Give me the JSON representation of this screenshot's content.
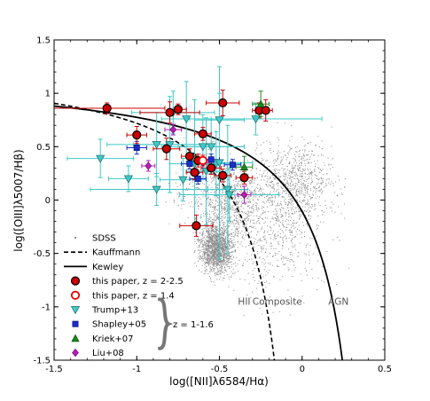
{
  "chart_data": {
    "type": "scatter",
    "title": "",
    "xlabel": "log([NII]λ6584/Hα)",
    "ylabel": "log([OIII]λ5007/Hβ)",
    "xlim": [
      -1.5,
      0.5
    ],
    "ylim": [
      -1.5,
      1.5
    ],
    "xticks": [
      "-1.5",
      "-1",
      "-0.5",
      "0",
      "0.5"
    ],
    "yticks": [
      "-1.5",
      "-1",
      "-0.5",
      "0",
      "0.5",
      "1",
      "1.5"
    ],
    "xtick_values": [
      -1.5,
      -1,
      -0.5,
      0,
      0.5
    ],
    "ytick_values": [
      -1.5,
      -1,
      -0.5,
      0,
      0.5,
      1,
      1.5
    ],
    "grid": false,
    "legend_position": "bottom-left",
    "legend": [
      {
        "label": "SDSS",
        "marker": "dot",
        "color": "#888888"
      },
      {
        "label": "Kauffmann",
        "marker": "dashed-line",
        "color": "#000000"
      },
      {
        "label": "Kewley",
        "marker": "solid-line",
        "color": "#000000"
      },
      {
        "label": "this paper, z = 2-2.5",
        "marker": "circle-filled",
        "color": "#cc0000"
      },
      {
        "label": "this paper, z = 1.4",
        "marker": "circle-open",
        "color": "#ee0000"
      },
      {
        "label": "Trump+13",
        "marker": "triangle-down",
        "color": "#40c8c8"
      },
      {
        "label": "Shapley+05",
        "marker": "square",
        "color": "#1a2cc8"
      },
      {
        "label": "Kriek+07",
        "marker": "triangle-up",
        "color": "#1a8a1a"
      },
      {
        "label": "Liu+08",
        "marker": "diamond",
        "color": "#b81bb8"
      }
    ],
    "brace_label": "z = 1-1.6",
    "region_labels": [
      "HII",
      "Composite",
      "AGN"
    ],
    "curves": {
      "kauffmann": {
        "formula": "y = 0.61/(x-0.05)+1.3",
        "x_max": 0.05,
        "style": "dashed"
      },
      "kewley": {
        "formula": "y = 0.61/(x-0.47)+1.19",
        "x_max": 0.47,
        "style": "solid"
      }
    },
    "series": [
      {
        "name": "this paper, z = 2-2.5",
        "color": "#cc0000",
        "points": [
          {
            "x": -1.18,
            "y": 0.86,
            "xerr": 0.35,
            "yerr": 0.05
          },
          {
            "x": -1.0,
            "y": 0.61,
            "xerr": 0.06,
            "yerr": 0.08
          },
          {
            "x": -0.8,
            "y": 0.82,
            "xerr": 0.18,
            "yerr": 0.1
          },
          {
            "x": -0.75,
            "y": 0.85,
            "xerr": 0.05,
            "yerr": 0.05
          },
          {
            "x": -0.82,
            "y": 0.48,
            "xerr": 0.08,
            "yerr": 0.1
          },
          {
            "x": -0.6,
            "y": 0.62,
            "xerr": 0.05,
            "yerr": 0.06
          },
          {
            "x": -0.68,
            "y": 0.41,
            "xerr": 0.05,
            "yerr": 0.07
          },
          {
            "x": -0.63,
            "y": 0.37,
            "xerr": 0.04,
            "yerr": 0.06
          },
          {
            "x": -0.65,
            "y": 0.26,
            "xerr": 0.05,
            "yerr": 0.07
          },
          {
            "x": -0.55,
            "y": 0.3,
            "xerr": 0.06,
            "yerr": 0.06
          },
          {
            "x": -0.48,
            "y": 0.23,
            "xerr": 0.05,
            "yerr": 0.06
          },
          {
            "x": -0.48,
            "y": 0.91,
            "xerr": 0.1,
            "yerr": 0.12
          },
          {
            "x": -0.26,
            "y": 0.84,
            "xerr": 0.04,
            "yerr": 0.07
          },
          {
            "x": -0.22,
            "y": 0.84,
            "xerr": 0.04,
            "yerr": 0.1
          },
          {
            "x": -0.35,
            "y": 0.21,
            "xerr": 0.05,
            "yerr": 0.06
          },
          {
            "x": -0.64,
            "y": -0.24,
            "xerr": 0.1,
            "yerr": 0.1
          }
        ]
      },
      {
        "name": "this paper, z = 1.4",
        "color": "#ee0000",
        "points": [
          {
            "x": -0.6,
            "y": 0.37,
            "xerr": 0.05,
            "yerr": 0.05
          }
        ]
      },
      {
        "name": "Trump+13",
        "color": "#40c8c8",
        "points": [
          {
            "x": -1.22,
            "y": 0.39,
            "xerr": 0.2,
            "yerr": 0.18
          },
          {
            "x": -1.05,
            "y": 0.2,
            "xerr": 0.12,
            "yerr": 0.12
          },
          {
            "x": -0.88,
            "y": 0.52,
            "xerr": 0.3,
            "yerr": 0.3
          },
          {
            "x": -0.8,
            "y": 0.52,
            "xerr": 0.22,
            "yerr": 0.45
          },
          {
            "x": -0.78,
            "y": 0.82,
            "xerr": 0.25,
            "yerr": 0.2
          },
          {
            "x": -0.72,
            "y": 0.19,
            "xerr": 0.14,
            "yerr": 0.2
          },
          {
            "x": -0.7,
            "y": 0.76,
            "xerr": 0.15,
            "yerr": 0.35
          },
          {
            "x": -0.65,
            "y": 0.34,
            "xerr": 0.15,
            "yerr": 0.6
          },
          {
            "x": -0.6,
            "y": 0.5,
            "xerr": 0.25,
            "yerr": 0.3
          },
          {
            "x": -0.58,
            "y": 0.27,
            "xerr": 0.12,
            "yerr": 0.5
          },
          {
            "x": -0.55,
            "y": 0.5,
            "xerr": 0.2,
            "yerr": 0.25
          },
          {
            "x": -0.52,
            "y": 0.34,
            "xerr": 0.15,
            "yerr": 0.3
          },
          {
            "x": -0.5,
            "y": 0.75,
            "xerr": 0.15,
            "yerr": 0.25
          },
          {
            "x": -0.45,
            "y": 0.1,
            "xerr": 0.12,
            "yerr": 0.6
          },
          {
            "x": -0.5,
            "y": 0.35,
            "xerr": 0.2,
            "yerr": 0.9
          },
          {
            "x": -0.28,
            "y": 0.76,
            "xerr": 0.4,
            "yerr": 0.15
          },
          {
            "x": -0.44,
            "y": 0.05,
            "xerr": 0.3,
            "yerr": 0.25
          },
          {
            "x": -0.88,
            "y": 0.1,
            "xerr": 0.4,
            "yerr": 0.15
          }
        ]
      },
      {
        "name": "Shapley+05",
        "color": "#1a2cc8",
        "points": [
          {
            "x": -1.0,
            "y": 0.49,
            "xerr": 0.06,
            "yerr": 0.06
          },
          {
            "x": -0.63,
            "y": 0.2,
            "xerr": 0.05,
            "yerr": 0.05
          },
          {
            "x": -0.68,
            "y": 0.34,
            "xerr": 0.05,
            "yerr": 0.05
          },
          {
            "x": -0.55,
            "y": 0.38,
            "xerr": 0.05,
            "yerr": 0.05
          },
          {
            "x": -0.42,
            "y": 0.33,
            "xerr": 0.05,
            "yerr": 0.05
          }
        ]
      },
      {
        "name": "Kriek+07",
        "color": "#1a8a1a",
        "points": [
          {
            "x": -0.35,
            "y": 0.31,
            "xerr": 0.05,
            "yerr": 0.1
          },
          {
            "x": -0.25,
            "y": 0.9,
            "xerr": 0.05,
            "yerr": 0.12
          }
        ]
      },
      {
        "name": "Liu+08",
        "color": "#b81bb8",
        "points": [
          {
            "x": -0.93,
            "y": 0.32,
            "xerr": 0.04,
            "yerr": 0.05
          },
          {
            "x": -0.78,
            "y": 0.66,
            "xerr": 0.05,
            "yerr": 0.05
          },
          {
            "x": -0.35,
            "y": 0.05,
            "xerr": 0.04,
            "yerr": 0.08
          },
          {
            "x": -0.6,
            "y": 0.35,
            "xerr": 0.04,
            "yerr": 0.05
          }
        ]
      }
    ]
  }
}
